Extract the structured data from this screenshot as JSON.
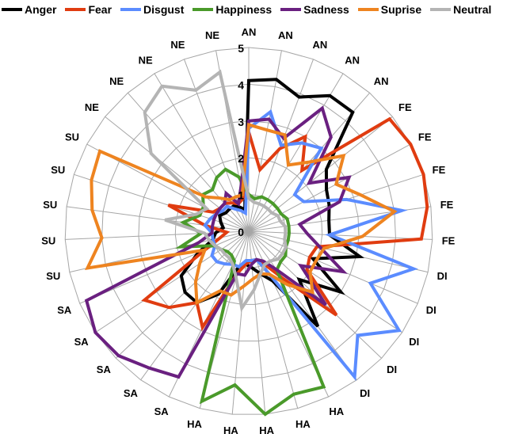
{
  "chart_data": {
    "type": "radar",
    "title": "",
    "categories": [
      "AN",
      "AN",
      "AN",
      "AN",
      "AN",
      "FE",
      "FE",
      "FE",
      "FE",
      "FE",
      "DI",
      "DI",
      "DI",
      "DI",
      "DI",
      "HA",
      "HA",
      "HA",
      "HA",
      "HA",
      "SA",
      "SA",
      "SA",
      "SA",
      "SA",
      "SU",
      "SU",
      "SU",
      "SU",
      "SU",
      "NE",
      "NE",
      "NE",
      "NE",
      "NE"
    ],
    "rlim": [
      0,
      5
    ],
    "ticks": [
      "0",
      "1",
      "2",
      "3",
      "4",
      "5"
    ],
    "legend_position": "top",
    "series": [
      {
        "name": "Anger",
        "color": "#000000",
        "values": [
          4.1,
          4.2,
          3.9,
          4.3,
          4.3,
          2.7,
          2.4,
          2.3,
          2.2,
          2.2,
          3.1,
          1.9,
          3.0,
          1.9,
          3.2,
          1.5,
          1.2,
          1.0,
          0.9,
          1.0,
          1.9,
          2.4,
          2.4,
          2.2,
          1.5,
          1.0,
          0.9,
          0.7,
          0.8,
          0.9,
          0.8,
          0.8,
          0.8,
          0.7,
          0.6
        ]
      },
      {
        "name": "Fear",
        "color": "#e03c10",
        "values": [
          2.7,
          1.7,
          2.4,
          3.0,
          2.2,
          4.9,
          5.0,
          5.0,
          4.9,
          4.7,
          1.9,
          1.8,
          1.9,
          3.3,
          1.6,
          1.0,
          0.8,
          0.8,
          0.9,
          1.2,
          2.9,
          2.4,
          3.0,
          3.4,
          1.3,
          0.8,
          0.6,
          1.2,
          2.3,
          1.1,
          1.0,
          1.0,
          0.9,
          0.8,
          0.9
        ]
      },
      {
        "name": "Disgust",
        "color": "#5b8cff",
        "values": [
          2.8,
          3.3,
          2.5,
          2.8,
          3.0,
          1.6,
          1.7,
          2.8,
          4.2,
          2.2,
          4.6,
          3.6,
          4.9,
          4.1,
          4.9,
          1.3,
          0.8,
          0.8,
          0.8,
          1.0,
          1.0,
          1.1,
          1.2,
          1.2,
          1.0,
          1.0,
          1.0,
          1.2,
          1.1,
          1.0,
          0.9,
          0.9,
          0.7,
          0.6,
          0.5
        ]
      },
      {
        "name": "Happiness",
        "color": "#4a9a2a",
        "values": [
          1.0,
          0.9,
          1.0,
          1.0,
          1.0,
          1.0,
          1.0,
          1.1,
          1.1,
          1.1,
          1.1,
          1.1,
          1.2,
          1.2,
          1.3,
          4.7,
          4.6,
          5.0,
          4.2,
          4.8,
          0.9,
          0.8,
          0.8,
          0.9,
          1.0,
          1.9,
          1.3,
          1.8,
          1.4,
          1.4,
          1.6,
          1.5,
          1.7,
          1.8,
          1.5
        ]
      },
      {
        "name": "Sadness",
        "color": "#6a2080",
        "values": [
          3.0,
          3.1,
          2.7,
          3.9,
          3.4,
          2.1,
          3.1,
          2.6,
          1.4,
          1.6,
          2.0,
          2.8,
          1.7,
          2.9,
          1.3,
          0.9,
          0.8,
          0.9,
          1.2,
          1.2,
          4.4,
          4.6,
          4.9,
          5.0,
          4.8,
          1.4,
          1.0,
          1.0,
          1.0,
          1.0,
          1.0,
          1.0,
          1.2,
          0.8,
          1.2
        ]
      },
      {
        "name": "Suprise",
        "color": "#ee8420",
        "values": [
          2.9,
          2.8,
          2.8,
          2.1,
          2.5,
          3.3,
          2.7,
          3.2,
          4.0,
          3.1,
          2.1,
          2.0,
          2.0,
          2.4,
          1.8,
          1.3,
          1.2,
          1.3,
          1.5,
          1.8,
          1.8,
          2.4,
          2.0,
          1.6,
          1.3,
          4.5,
          4.0,
          4.3,
          4.5,
          4.6,
          1.5,
          1.2,
          1.0,
          1.0,
          1.0
        ]
      },
      {
        "name": "Neutral",
        "color": "#b4b4b4",
        "values": [
          0.9,
          0.8,
          0.8,
          0.8,
          0.8,
          0.8,
          0.9,
          0.9,
          1.0,
          1.0,
          1.0,
          1.1,
          1.1,
          1.1,
          1.0,
          1.0,
          1.2,
          1.6,
          2.1,
          1.3,
          1.0,
          0.9,
          0.9,
          0.9,
          1.0,
          1.1,
          1.2,
          2.3,
          1.5,
          1.3,
          3.4,
          4.3,
          4.6,
          4.1,
          4.4
        ]
      }
    ]
  }
}
